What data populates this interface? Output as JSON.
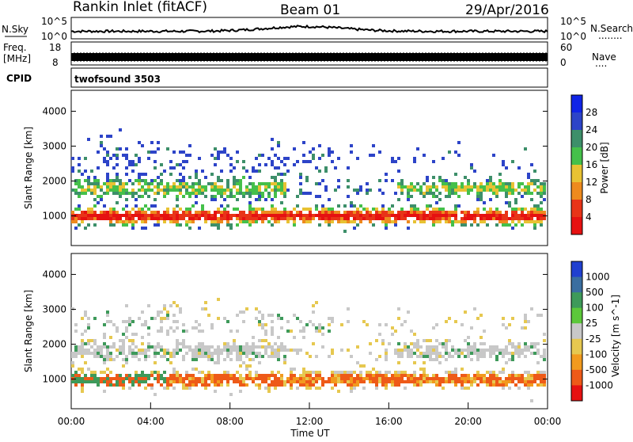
{
  "header": {
    "station": "Rankin Inlet (fitACF)",
    "beam": "Beam 01",
    "date": "29/Apr/2016"
  },
  "nsky_panel": {
    "left_label": "N.Sky",
    "left_ticks": [
      "10^5",
      "10^0"
    ],
    "right_label": "N.Search",
    "right_ticks": [
      "10^5",
      "10^0"
    ],
    "right_dots": "........"
  },
  "freq_panel": {
    "left_label_top": "Freq.",
    "left_label_unit": "[MHz]",
    "left_ticks": [
      "18",
      "8"
    ],
    "right_label": "Nave",
    "right_ticks": [
      "60",
      "0"
    ],
    "right_dots": "...."
  },
  "cpid_panel": {
    "label": "CPID",
    "program": "twofsound 3503"
  },
  "chart_data": [
    {
      "type": "heatmap",
      "name": "power",
      "ylabel": "Slant Range [km]",
      "y_ticks": [
        "1000",
        "2000",
        "3000",
        "4000"
      ],
      "ylim": [
        150,
        4600
      ],
      "xlim_hours": [
        0,
        24
      ],
      "colorbar_label": "Power [dB]",
      "colorbar_ticks": [
        "4",
        "8",
        "12",
        "16",
        "20",
        "24",
        "28"
      ],
      "colorbar_colors": [
        "#1024e6",
        "#2d44c8",
        "#3d8f6a",
        "#45c04a",
        "#e8c233",
        "#ee8a1e",
        "#e83418",
        "#e61111"
      ]
    },
    {
      "type": "heatmap",
      "name": "velocity",
      "ylabel": "Slant Range [km]",
      "y_ticks": [
        "1000",
        "2000",
        "3000",
        "4000"
      ],
      "ylim": [
        150,
        4600
      ],
      "xlim_hours": [
        0,
        24
      ],
      "xlabel": "Time UT",
      "x_ticks": [
        "00:00",
        "04:00",
        "08:00",
        "12:00",
        "16:00",
        "20:00",
        "00:00"
      ],
      "colorbar_label": "Velocity [m s^-1]",
      "colorbar_ticks": [
        "1000",
        "500",
        "100",
        "25",
        "-25",
        "-100",
        "-500",
        "-1000"
      ],
      "colorbar_colors": [
        "#2040d0",
        "#3a6ea0",
        "#3e9a5a",
        "#5cc83a",
        "#c8c8c8",
        "#e6c850",
        "#f29a1e",
        "#ee5a18",
        "#e61111"
      ]
    }
  ]
}
